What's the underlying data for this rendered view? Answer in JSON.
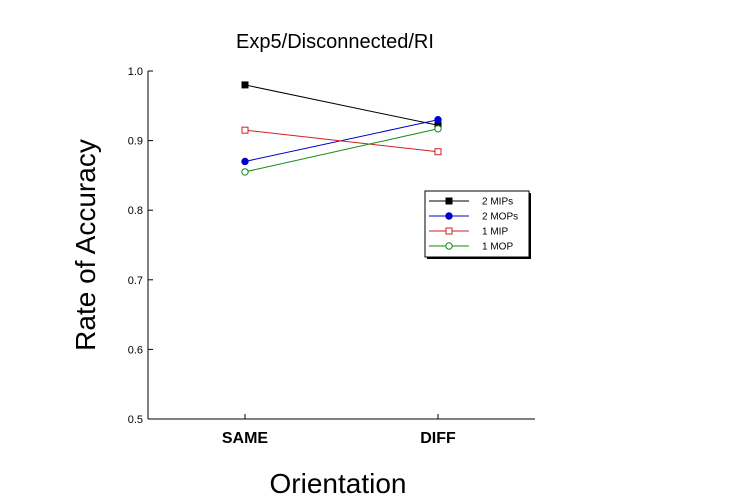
{
  "chart_data": {
    "type": "line",
    "title": "Exp5/Disconnected/RI",
    "xlabel": "Orientation",
    "ylabel": "Rate of Accuracy",
    "categories": [
      "SAME",
      "DIFF"
    ],
    "ylim": [
      0.5,
      1.0
    ],
    "yticks": [
      "0.5",
      "0.6",
      "0.7",
      "0.8",
      "0.9",
      "1.0"
    ],
    "grid": false,
    "legend_position": "right",
    "series": [
      {
        "name": "2 MIPs",
        "values": [
          0.98,
          0.922
        ],
        "color": "#000000",
        "marker": "filled-square"
      },
      {
        "name": "2 MOPs",
        "values": [
          0.87,
          0.93
        ],
        "color": "#0000cc",
        "marker": "filled-circle"
      },
      {
        "name": "1 MIP",
        "values": [
          0.915,
          0.884
        ],
        "color": "#cc2222",
        "marker": "open-square"
      },
      {
        "name": "1 MOP",
        "values": [
          0.855,
          0.917
        ],
        "color": "#118811",
        "marker": "open-circle"
      }
    ]
  }
}
